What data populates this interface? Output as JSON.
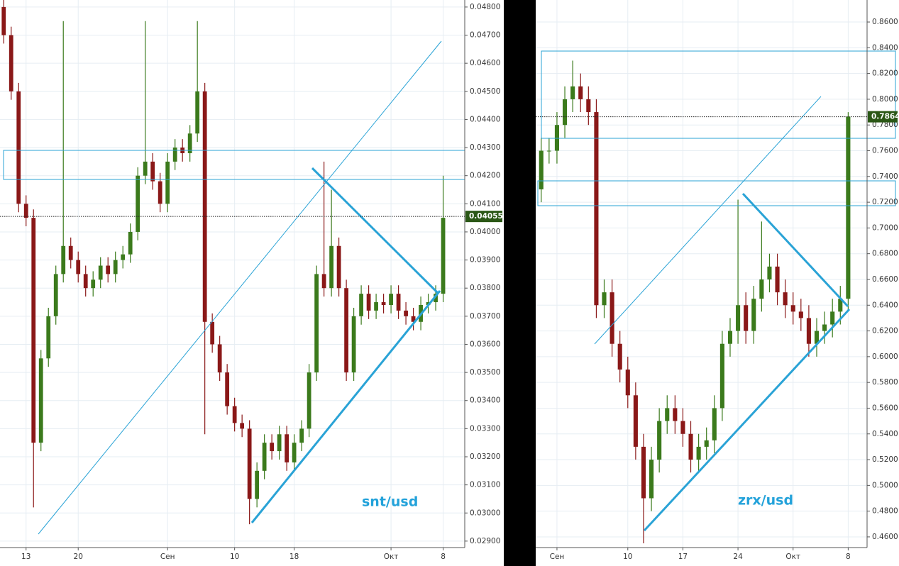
{
  "chart_data": [
    {
      "type": "candlestick",
      "annotation": "snt/usd",
      "x": [
        -3,
        -2,
        -1,
        0,
        1,
        2,
        3,
        4,
        5,
        6,
        7,
        8,
        9,
        10,
        11,
        12,
        13,
        14,
        15,
        16,
        17,
        18,
        19,
        20,
        21,
        22,
        23,
        24,
        25,
        26,
        27,
        28,
        29,
        30,
        31,
        32,
        33,
        34,
        35,
        36,
        37,
        38,
        39,
        40,
        41,
        42,
        43,
        44,
        45,
        46,
        47,
        48,
        49,
        50,
        51,
        52,
        53,
        54,
        55,
        56
      ],
      "open": [
        0.048,
        0.047,
        0.045,
        0.041,
        0.0405,
        0.0325,
        0.0355,
        0.037,
        0.0385,
        0.0395,
        0.039,
        0.0385,
        0.038,
        0.0383,
        0.0388,
        0.0385,
        0.039,
        0.0392,
        0.04,
        0.042,
        0.0425,
        0.0418,
        0.041,
        0.0425,
        0.043,
        0.0428,
        0.0435,
        0.045,
        0.0368,
        0.036,
        0.035,
        0.0338,
        0.0332,
        0.033,
        0.0305,
        0.0315,
        0.0325,
        0.0322,
        0.0328,
        0.0318,
        0.0325,
        0.033,
        0.035,
        0.0385,
        0.038,
        0.0395,
        0.038,
        0.035,
        0.037,
        0.0378,
        0.0372,
        0.0375,
        0.0374,
        0.0378,
        0.0372,
        0.037,
        0.0368,
        0.0374,
        0.0375,
        0.0378
      ],
      "high": [
        0.0483,
        0.0473,
        0.0453,
        0.0413,
        0.0408,
        0.0358,
        0.0373,
        0.0388,
        0.0475,
        0.0398,
        0.0393,
        0.0388,
        0.0386,
        0.0391,
        0.0391,
        0.0393,
        0.0395,
        0.0403,
        0.0423,
        0.0475,
        0.0428,
        0.0421,
        0.0428,
        0.0433,
        0.0433,
        0.0438,
        0.0475,
        0.0453,
        0.0371,
        0.0363,
        0.0353,
        0.0341,
        0.0335,
        0.0333,
        0.0318,
        0.0328,
        0.0328,
        0.0331,
        0.0331,
        0.0328,
        0.0333,
        0.0353,
        0.0388,
        0.0425,
        0.0415,
        0.0398,
        0.0383,
        0.0373,
        0.0381,
        0.0381,
        0.0378,
        0.0378,
        0.0381,
        0.0381,
        0.0375,
        0.0373,
        0.0377,
        0.0378,
        0.0381,
        0.042
      ],
      "low": [
        0.0467,
        0.0447,
        0.0407,
        0.0402,
        0.0302,
        0.0322,
        0.0352,
        0.0367,
        0.0382,
        0.0387,
        0.0382,
        0.0377,
        0.0377,
        0.038,
        0.0382,
        0.0382,
        0.0387,
        0.0389,
        0.0397,
        0.0417,
        0.0415,
        0.0407,
        0.0407,
        0.0422,
        0.0425,
        0.0425,
        0.0432,
        0.0328,
        0.0357,
        0.0347,
        0.0335,
        0.0329,
        0.0327,
        0.0296,
        0.0302,
        0.0312,
        0.0319,
        0.0319,
        0.0315,
        0.0315,
        0.0322,
        0.0327,
        0.0347,
        0.0377,
        0.0377,
        0.0377,
        0.0347,
        0.0347,
        0.0367,
        0.0369,
        0.0369,
        0.0371,
        0.0371,
        0.0369,
        0.0367,
        0.0365,
        0.0365,
        0.0371,
        0.0372,
        0.0375
      ],
      "close": [
        0.047,
        0.045,
        0.041,
        0.0405,
        0.0325,
        0.0355,
        0.037,
        0.0385,
        0.0395,
        0.039,
        0.0385,
        0.038,
        0.0383,
        0.0388,
        0.0385,
        0.039,
        0.0392,
        0.04,
        0.042,
        0.0425,
        0.0418,
        0.041,
        0.0425,
        0.043,
        0.0428,
        0.0435,
        0.045,
        0.0368,
        0.036,
        0.035,
        0.0338,
        0.0332,
        0.033,
        0.0305,
        0.0315,
        0.0325,
        0.0322,
        0.0328,
        0.0318,
        0.0325,
        0.033,
        0.035,
        0.0385,
        0.038,
        0.0395,
        0.038,
        0.035,
        0.037,
        0.0378,
        0.0372,
        0.0375,
        0.0374,
        0.0378,
        0.0372,
        0.037,
        0.0368,
        0.0374,
        0.0375,
        0.0378,
        0.0405
      ],
      "up_color": "#3b7a1c",
      "down_color": "#8a1818",
      "last_price": {
        "value": 0.04055,
        "label": "0.04055"
      },
      "xlim": [
        -3.5,
        58.9
      ],
      "xticks": [
        {
          "value": 0,
          "label": "13"
        },
        {
          "value": 7,
          "label": "20"
        },
        {
          "value": 19,
          "label": "Сен"
        },
        {
          "value": 28,
          "label": "10"
        },
        {
          "value": 36,
          "label": "18"
        },
        {
          "value": 49,
          "label": "Окт"
        },
        {
          "value": 56,
          "label": "8"
        }
      ],
      "ylim": [
        0.02877,
        0.04825
      ],
      "yticks": [
        {
          "value": 0.029,
          "label": "0.02900"
        },
        {
          "value": 0.03,
          "label": "0.03000"
        },
        {
          "value": 0.031,
          "label": "0.03100"
        },
        {
          "value": 0.032,
          "label": "0.03200"
        },
        {
          "value": 0.033,
          "label": "0.03300"
        },
        {
          "value": 0.034,
          "label": "0.03400"
        },
        {
          "value": 0.035,
          "label": "0.03500"
        },
        {
          "value": 0.036,
          "label": "0.03600"
        },
        {
          "value": 0.037,
          "label": "0.03700"
        },
        {
          "value": 0.038,
          "label": "0.03800"
        },
        {
          "value": 0.039,
          "label": "0.03900"
        },
        {
          "value": 0.04,
          "label": "0.04000"
        },
        {
          "value": 0.041,
          "label": "0.04100"
        },
        {
          "value": 0.042,
          "label": "0.04200"
        },
        {
          "value": 0.043,
          "label": "0.04300"
        },
        {
          "value": 0.044,
          "label": "0.04400"
        },
        {
          "value": 0.045,
          "label": "0.04500"
        },
        {
          "value": 0.046,
          "label": "0.04600"
        },
        {
          "value": 0.047,
          "label": "0.04700"
        },
        {
          "value": 0.048,
          "label": "0.04800"
        }
      ],
      "grid": true
    },
    {
      "type": "candlestick",
      "annotation": "zrx/usd",
      "x": [
        -2,
        -1,
        0,
        1,
        2,
        3,
        4,
        5,
        6,
        7,
        8,
        9,
        10,
        11,
        12,
        13,
        14,
        15,
        16,
        17,
        18,
        19,
        20,
        21,
        22,
        23,
        24,
        25,
        26,
        27,
        28,
        29,
        30,
        31,
        32,
        33,
        34,
        35,
        36,
        37
      ],
      "open": [
        0.73,
        0.76,
        0.76,
        0.78,
        0.8,
        0.81,
        0.8,
        0.79,
        0.64,
        0.65,
        0.61,
        0.59,
        0.57,
        0.53,
        0.49,
        0.52,
        0.55,
        0.56,
        0.55,
        0.54,
        0.52,
        0.53,
        0.535,
        0.56,
        0.61,
        0.62,
        0.64,
        0.62,
        0.645,
        0.66,
        0.67,
        0.65,
        0.64,
        0.635,
        0.63,
        0.61,
        0.62,
        0.625,
        0.635,
        0.645
      ],
      "high": [
        0.77,
        0.77,
        0.79,
        0.81,
        0.83,
        0.82,
        0.81,
        0.8,
        0.66,
        0.66,
        0.62,
        0.6,
        0.58,
        0.54,
        0.53,
        0.56,
        0.57,
        0.57,
        0.56,
        0.55,
        0.54,
        0.545,
        0.57,
        0.62,
        0.63,
        0.722,
        0.65,
        0.655,
        0.705,
        0.68,
        0.68,
        0.66,
        0.65,
        0.645,
        0.64,
        0.63,
        0.635,
        0.645,
        0.655,
        0.79
      ],
      "low": [
        0.72,
        0.75,
        0.75,
        0.77,
        0.79,
        0.79,
        0.78,
        0.63,
        0.63,
        0.6,
        0.58,
        0.56,
        0.52,
        0.455,
        0.48,
        0.51,
        0.54,
        0.54,
        0.53,
        0.51,
        0.51,
        0.52,
        0.525,
        0.55,
        0.6,
        0.61,
        0.61,
        0.61,
        0.635,
        0.65,
        0.64,
        0.63,
        0.625,
        0.62,
        0.6,
        0.6,
        0.61,
        0.615,
        0.625,
        0.635
      ],
      "close": [
        0.76,
        0.76,
        0.78,
        0.8,
        0.81,
        0.8,
        0.79,
        0.64,
        0.65,
        0.61,
        0.59,
        0.57,
        0.53,
        0.49,
        0.52,
        0.55,
        0.56,
        0.55,
        0.54,
        0.52,
        0.53,
        0.535,
        0.56,
        0.61,
        0.62,
        0.64,
        0.62,
        0.645,
        0.66,
        0.67,
        0.65,
        0.64,
        0.635,
        0.63,
        0.61,
        0.62,
        0.625,
        0.635,
        0.645,
        0.7864
      ],
      "up_color": "#3b7a1c",
      "down_color": "#8a1818",
      "last_price": {
        "value": 0.7864,
        "label": "0.7864"
      },
      "xlim": [
        -2.7,
        39.4
      ],
      "xticks": [
        {
          "value": 0,
          "label": "Сен"
        },
        {
          "value": 9,
          "label": "10"
        },
        {
          "value": 16,
          "label": "17"
        },
        {
          "value": 23,
          "label": "24"
        },
        {
          "value": 30,
          "label": "Окт"
        },
        {
          "value": 37,
          "label": "8"
        }
      ],
      "ylim": [
        0.4517,
        0.8771
      ],
      "yticks": [
        {
          "value": 0.46,
          "label": "0.4600"
        },
        {
          "value": 0.48,
          "label": "0.4800"
        },
        {
          "value": 0.5,
          "label": "0.5000"
        },
        {
          "value": 0.52,
          "label": "0.5200"
        },
        {
          "value": 0.54,
          "label": "0.5400"
        },
        {
          "value": 0.56,
          "label": "0.5600"
        },
        {
          "value": 0.58,
          "label": "0.5800"
        },
        {
          "value": 0.6,
          "label": "0.6000"
        },
        {
          "value": 0.62,
          "label": "0.6200"
        },
        {
          "value": 0.64,
          "label": "0.6400"
        },
        {
          "value": 0.66,
          "label": "0.6600"
        },
        {
          "value": 0.68,
          "label": "0.6800"
        },
        {
          "value": 0.7,
          "label": "0.7000"
        },
        {
          "value": 0.72,
          "label": "0.7200"
        },
        {
          "value": 0.74,
          "label": "0.7400"
        },
        {
          "value": 0.76,
          "label": "0.7600"
        },
        {
          "value": 0.78,
          "label": "0.7800"
        },
        {
          "value": 0.8,
          "label": "0.8000"
        },
        {
          "value": 0.82,
          "label": "0.8200"
        },
        {
          "value": 0.84,
          "label": "0.8400"
        },
        {
          "value": 0.86,
          "label": "0.8600"
        }
      ],
      "grid": true
    }
  ]
}
